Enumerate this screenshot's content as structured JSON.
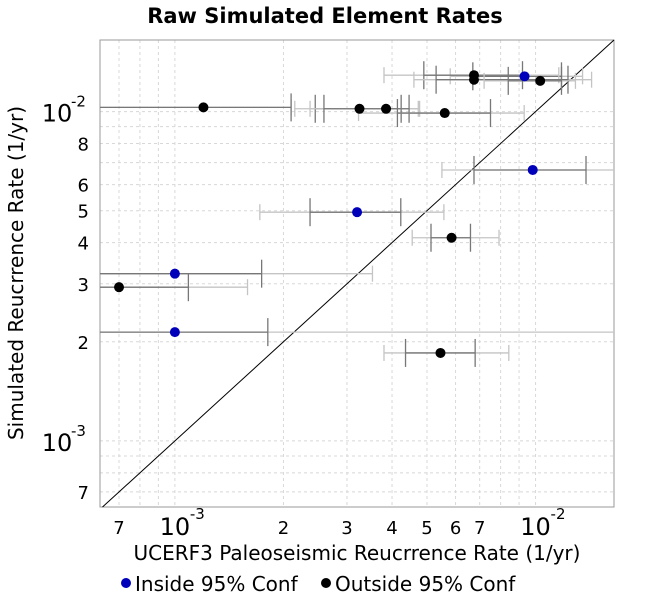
{
  "chart_data": {
    "type": "scatter",
    "title": "Raw Simulated Element Rates",
    "xlabel": "UCERF3 Paleoseismic Reucrrence Rate (1/yr)",
    "ylabel": "Simulated Reucrrence Rate (1/yr)",
    "x_scale": "log",
    "y_scale": "log",
    "xlim": [
      0.00062,
      0.0165
    ],
    "ylim": [
      0.00063,
      0.0165
    ],
    "grid": true,
    "legend_position": "bottom",
    "x_ticks": [
      {
        "value": 0.0007,
        "base": "7",
        "exp": ""
      },
      {
        "value": 0.001,
        "base": "10",
        "exp": "-3"
      },
      {
        "value": 0.002,
        "base": "2",
        "exp": ""
      },
      {
        "value": 0.003,
        "base": "3",
        "exp": ""
      },
      {
        "value": 0.004,
        "base": "4",
        "exp": ""
      },
      {
        "value": 0.005,
        "base": "5",
        "exp": ""
      },
      {
        "value": 0.006,
        "base": "6",
        "exp": ""
      },
      {
        "value": 0.007,
        "base": "7",
        "exp": ""
      },
      {
        "value": 0.01,
        "base": "10",
        "exp": "-2"
      }
    ],
    "y_ticks": [
      {
        "value": 0.0007,
        "base": "7",
        "exp": ""
      },
      {
        "value": 0.001,
        "base": "10",
        "exp": "-3"
      },
      {
        "value": 0.002,
        "base": "2",
        "exp": ""
      },
      {
        "value": 0.003,
        "base": "3",
        "exp": ""
      },
      {
        "value": 0.004,
        "base": "4",
        "exp": ""
      },
      {
        "value": 0.005,
        "base": "5",
        "exp": ""
      },
      {
        "value": 0.006,
        "base": "6",
        "exp": ""
      },
      {
        "value": 0.008,
        "base": "8",
        "exp": ""
      },
      {
        "value": 0.01,
        "base": "10",
        "exp": "-2"
      }
    ],
    "diagonal": "y = x",
    "series": [
      {
        "name": "Inside 95% Conf",
        "color": "#0000bb",
        "points": [
          {
            "x": 0.00932,
            "y": 0.0128,
            "x68": [
              0.0067,
              0.0118
            ],
            "x95": [
              0.0058,
              0.0135
            ]
          },
          {
            "x": 0.00982,
            "y": 0.00665,
            "x68": [
              0.00675,
              0.0138
            ],
            "x95": [
              0.0055,
              0.0181
            ]
          },
          {
            "x": 0.0032,
            "y": 0.00495,
            "x68": [
              0.00237,
              0.00423
            ],
            "x95": [
              0.00172,
              0.00557
            ]
          },
          {
            "x": 0.001,
            "y": 0.00322,
            "x68": [
              0.0006,
              0.00174
            ],
            "x95": [
              0.0006,
              0.00353
            ]
          },
          {
            "x": 0.001,
            "y": 0.00214,
            "x68": [
              0.0006,
              0.00181
            ],
            "x95": [
              0.0006,
              0.02
            ]
          }
        ]
      },
      {
        "name": "Outside 95% Conf",
        "color": "#000000",
        "points": [
          {
            "x": 0.00675,
            "y": 0.0129,
            "x68": [
              0.0049,
              0.0092
            ],
            "x95": [
              0.0038,
              0.0116
            ]
          },
          {
            "x": 0.00675,
            "y": 0.0125,
            "x68": [
              0.0053,
              0.0123
            ],
            "x95": [
              0.0046,
              0.0143
            ]
          },
          {
            "x": 0.0103,
            "y": 0.0124,
            "x68": [
              0.0084,
              0.0118
            ],
            "x95": [
              0.0072,
              0.0129
            ]
          },
          {
            "x": 0.0012,
            "y": 0.0103,
            "x68": [
              0.0006,
              0.0021
            ],
            "x95": [
              0.0006,
              0.0021
            ]
          },
          {
            "x": 0.00325,
            "y": 0.0102,
            "x68": [
              0.00245,
              0.00424
            ],
            "x95": [
              0.00215,
              0.00473
            ]
          },
          {
            "x": 0.00385,
            "y": 0.0102,
            "x68": [
              0.00259,
              0.00446
            ],
            "x95": [
              0.00237,
              0.00477
            ]
          },
          {
            "x": 0.0056,
            "y": 0.0099,
            "x68": [
              0.00414,
              0.0075
            ],
            "x95": [
              0.00323,
              0.0093
            ]
          },
          {
            "x": 0.00585,
            "y": 0.00414,
            "x68": [
              0.00513,
              0.0066
            ],
            "x95": [
              0.00455,
              0.00792
            ]
          },
          {
            "x": 0.00545,
            "y": 0.00185,
            "x68": [
              0.00436,
              0.0068
            ],
            "x95": [
              0.0038,
              0.00843
            ]
          },
          {
            "x": 0.0007,
            "y": 0.00293,
            "x68": [
              0.0006,
              0.00109
            ],
            "x95": [
              0.0006,
              0.00159
            ]
          }
        ]
      }
    ],
    "legend": [
      {
        "label": "Inside 95% Conf",
        "color": "#0000bb"
      },
      {
        "label": "Outside 95% Conf",
        "color": "#000000"
      }
    ]
  }
}
